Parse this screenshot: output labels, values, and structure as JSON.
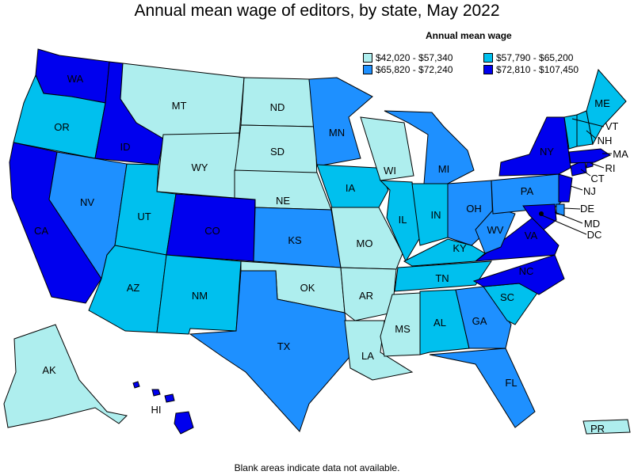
{
  "title": "Annual mean wage of editors, by state, May 2022",
  "legend": {
    "title": "Annual mean wage",
    "bins": [
      {
        "label": "$42,020 - $57,340",
        "color": "#aeeeee"
      },
      {
        "label": "$57,790 - $65,200",
        "color": "#00c0ee"
      },
      {
        "label": "$65,820 - $72,240",
        "color": "#1e90ff"
      },
      {
        "label": "$72,810 - $107,450",
        "color": "#0000ee"
      }
    ]
  },
  "footnote": "Blank areas indicate data not available.",
  "states": {
    "WA": {
      "label": "WA",
      "bin": 3
    },
    "OR": {
      "label": "OR",
      "bin": 1
    },
    "CA": {
      "label": "CA",
      "bin": 3
    },
    "ID": {
      "label": "ID",
      "bin": 3
    },
    "NV": {
      "label": "NV",
      "bin": 2
    },
    "MT": {
      "label": "MT",
      "bin": 0
    },
    "WY": {
      "label": "WY",
      "bin": 0
    },
    "UT": {
      "label": "UT",
      "bin": 1
    },
    "AZ": {
      "label": "AZ",
      "bin": 1
    },
    "CO": {
      "label": "CO",
      "bin": 3
    },
    "NM": {
      "label": "NM",
      "bin": 1
    },
    "ND": {
      "label": "ND",
      "bin": 0
    },
    "SD": {
      "label": "SD",
      "bin": 0
    },
    "NE": {
      "label": "NE",
      "bin": 0
    },
    "KS": {
      "label": "KS",
      "bin": 2
    },
    "OK": {
      "label": "OK",
      "bin": 0
    },
    "TX": {
      "label": "TX",
      "bin": 2
    },
    "MN": {
      "label": "MN",
      "bin": 2
    },
    "IA": {
      "label": "IA",
      "bin": 1
    },
    "MO": {
      "label": "MO",
      "bin": 0
    },
    "AR": {
      "label": "AR",
      "bin": 0
    },
    "LA": {
      "label": "LA",
      "bin": 0
    },
    "WI": {
      "label": "WI",
      "bin": 0
    },
    "IL": {
      "label": "IL",
      "bin": 1
    },
    "MI": {
      "label": "MI",
      "bin": 2
    },
    "IN": {
      "label": "IN",
      "bin": 1
    },
    "OH": {
      "label": "OH",
      "bin": 2
    },
    "KY": {
      "label": "KY",
      "bin": 1
    },
    "TN": {
      "label": "TN",
      "bin": 1
    },
    "MS": {
      "label": "MS",
      "bin": 0
    },
    "AL": {
      "label": "AL",
      "bin": 1
    },
    "GA": {
      "label": "GA",
      "bin": 2
    },
    "FL": {
      "label": "FL",
      "bin": 2
    },
    "SC": {
      "label": "SC",
      "bin": 1
    },
    "NC": {
      "label": "NC",
      "bin": 3
    },
    "VA": {
      "label": "VA",
      "bin": 3
    },
    "WV": {
      "label": "WV",
      "bin": 2
    },
    "PA": {
      "label": "PA",
      "bin": 2
    },
    "NY": {
      "label": "NY",
      "bin": 3
    },
    "NJ": {
      "label": "NJ",
      "bin": 3
    },
    "DE": {
      "label": "DE",
      "bin": 2
    },
    "MD": {
      "label": "MD",
      "bin": 3
    },
    "DC": {
      "label": "DC",
      "bin": 3
    },
    "CT": {
      "label": "CT",
      "bin": 3
    },
    "RI": {
      "label": "RI",
      "bin": 3
    },
    "MA": {
      "label": "MA",
      "bin": 3
    },
    "VT": {
      "label": "VT",
      "bin": 1
    },
    "NH": {
      "label": "NH",
      "bin": 1
    },
    "ME": {
      "label": "ME",
      "bin": 1
    },
    "AK": {
      "label": "AK",
      "bin": 0
    },
    "HI": {
      "label": "HI",
      "bin": 3
    },
    "PR": {
      "label": "PR",
      "bin": 0
    }
  }
}
